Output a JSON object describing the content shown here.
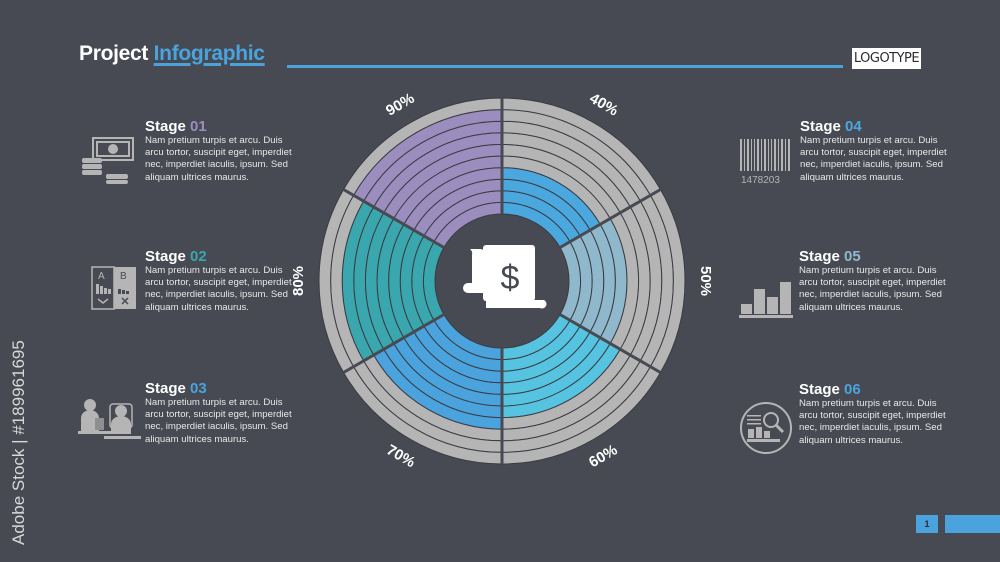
{
  "header": {
    "title_plain": "Project",
    "title_accent": "Infographic",
    "logo": "LOGOTYPE",
    "accent_color": "#4aa3dd"
  },
  "stages": [
    {
      "label": "Stage",
      "num": "01",
      "color": "#9b8ebf",
      "icon": "money-coins-icon",
      "text": "Nam pretium turpis et arcu. Duis arcu tortor, suscipit eget, imperdiet nec, imperdiet iaculis, ipsum. Sed aliquam ultrices maurus."
    },
    {
      "label": "Stage",
      "num": "02",
      "color": "#3aa7ae",
      "icon": "ab-test-icon",
      "text": "Nam pretium turpis et arcu. Duis arcu tortor, suscipit eget, imperdiet nec, imperdiet iaculis, ipsum. Sed aliquam ultrices maurus."
    },
    {
      "label": "Stage",
      "num": "03",
      "color": "#4aa3dd",
      "icon": "meeting-icon",
      "text": "Nam pretium turpis et arcu. Duis arcu tortor, suscipit eget, imperdiet nec, imperdiet iaculis, ipsum. Sed aliquam ultrices maurus."
    },
    {
      "label": "Stage",
      "num": "04",
      "color": "#4aa8df",
      "icon": "barcode-icon",
      "barcode": "1478203",
      "text": "Nam pretium turpis et arcu. Duis arcu tortor, suscipit eget, imperdiet nec, imperdiet iaculis, ipsum. Sed aliquam ultrices maurus."
    },
    {
      "label": "Stage",
      "num": "05",
      "color": "#8fb8cc",
      "icon": "bar-chart-icon",
      "text": "Nam pretium turpis et arcu. Duis arcu tortor, suscipit eget, imperdiet nec, imperdiet iaculis, ipsum. Sed aliquam ultrices maurus."
    },
    {
      "label": "Stage",
      "num": "06",
      "color": "#4aa3dd",
      "icon": "analytics-search-icon",
      "text": "Nam pretium turpis et arcu. Duis arcu tortor, suscipit eget, imperdiet nec, imperdiet iaculis, ipsum. Sed aliquam ultrices maurus."
    }
  ],
  "chart_data": {
    "type": "radial-bar",
    "categories": [
      "40%",
      "50%",
      "60%",
      "70%",
      "80%",
      "90%"
    ],
    "values": [
      40,
      50,
      60,
      70,
      80,
      90
    ],
    "max": 100,
    "ring_step": 10,
    "colors": [
      "#4aa8df",
      "#8fb8cc",
      "#56c4e0",
      "#4aa3dd",
      "#3aa7ae",
      "#9b8ebf"
    ],
    "track_color": "#b5b5b5",
    "center_icon": "dollar-bill-scroll-icon"
  },
  "footer": {
    "page": "1"
  },
  "watermark": "Adobe Stock | #189961695"
}
